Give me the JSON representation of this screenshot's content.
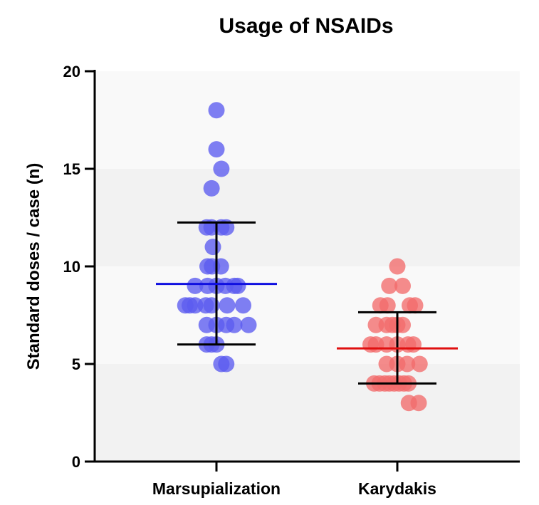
{
  "chart_data": {
    "type": "scatter",
    "title": "Usage of NSAIDs",
    "xlabel": "",
    "ylabel": "Standard doses / case (n)",
    "ylim": [
      0,
      20
    ],
    "yticks": [
      0,
      5,
      10,
      15,
      20
    ],
    "grid": "alternating horizontal bands",
    "categories": [
      "Marsupialization",
      "Karydakis"
    ],
    "series": [
      {
        "category": "Marsupialization",
        "color": "#5B5BF0",
        "summary_color": "#1010E0",
        "mean": 9.1,
        "sd_low": 6.0,
        "sd_high": 12.25,
        "points": [
          {
            "x": 0,
            "y": 18
          },
          {
            "x": 0,
            "y": 16
          },
          {
            "x": 0.55,
            "y": 15
          },
          {
            "x": -0.55,
            "y": 14
          },
          {
            "x": -1.1,
            "y": 12
          },
          {
            "x": -0.55,
            "y": 12
          },
          {
            "x": 0.55,
            "y": 12
          },
          {
            "x": 1.1,
            "y": 12
          },
          {
            "x": -0.4,
            "y": 11
          },
          {
            "x": -1.0,
            "y": 10
          },
          {
            "x": -0.5,
            "y": 10
          },
          {
            "x": 0.5,
            "y": 10
          },
          {
            "x": -2.4,
            "y": 9
          },
          {
            "x": -1.0,
            "y": 9
          },
          {
            "x": 0,
            "y": 9
          },
          {
            "x": 1.0,
            "y": 9
          },
          {
            "x": 2.0,
            "y": 9
          },
          {
            "x": 2.4,
            "y": 9
          },
          {
            "x": -3.5,
            "y": 8
          },
          {
            "x": -3.0,
            "y": 8
          },
          {
            "x": -2.4,
            "y": 8
          },
          {
            "x": -1.2,
            "y": 8
          },
          {
            "x": -0.55,
            "y": 8
          },
          {
            "x": 1.2,
            "y": 8
          },
          {
            "x": 3.0,
            "y": 8
          },
          {
            "x": -1.1,
            "y": 7
          },
          {
            "x": 0,
            "y": 7
          },
          {
            "x": 1.1,
            "y": 7
          },
          {
            "x": 2.0,
            "y": 7
          },
          {
            "x": 3.6,
            "y": 7
          },
          {
            "x": -1.1,
            "y": 6
          },
          {
            "x": -0.55,
            "y": 6
          },
          {
            "x": 0,
            "y": 6
          },
          {
            "x": 0.55,
            "y": 5
          },
          {
            "x": 1.1,
            "y": 5
          }
        ]
      },
      {
        "category": "Karydakis",
        "color": "#F26B6B",
        "summary_color": "#E01010",
        "mean": 5.8,
        "sd_low": 4.0,
        "sd_high": 7.65,
        "points": [
          {
            "x": 0,
            "y": 10
          },
          {
            "x": -0.9,
            "y": 9
          },
          {
            "x": 0.6,
            "y": 9
          },
          {
            "x": -1.9,
            "y": 8
          },
          {
            "x": -1.1,
            "y": 8
          },
          {
            "x": 1.4,
            "y": 8
          },
          {
            "x": 2.0,
            "y": 8
          },
          {
            "x": -2.4,
            "y": 7
          },
          {
            "x": -1.2,
            "y": 7
          },
          {
            "x": -0.55,
            "y": 7
          },
          {
            "x": 0,
            "y": 7
          },
          {
            "x": 0.6,
            "y": 7
          },
          {
            "x": -3.0,
            "y": 6
          },
          {
            "x": -2.4,
            "y": 6
          },
          {
            "x": -1.2,
            "y": 6
          },
          {
            "x": 0,
            "y": 6
          },
          {
            "x": 1.2,
            "y": 6
          },
          {
            "x": 1.8,
            "y": 6
          },
          {
            "x": -1.2,
            "y": 5
          },
          {
            "x": 0,
            "y": 5
          },
          {
            "x": 1.1,
            "y": 5
          },
          {
            "x": 2.5,
            "y": 5
          },
          {
            "x": -2.6,
            "y": 4
          },
          {
            "x": -2.0,
            "y": 4
          },
          {
            "x": -1.4,
            "y": 4
          },
          {
            "x": -0.9,
            "y": 4
          },
          {
            "x": -0.35,
            "y": 4
          },
          {
            "x": 0.2,
            "y": 4
          },
          {
            "x": 0.75,
            "y": 4
          },
          {
            "x": 1.25,
            "y": 4
          },
          {
            "x": 1.3,
            "y": 3
          },
          {
            "x": 2.4,
            "y": 3
          }
        ]
      }
    ]
  }
}
